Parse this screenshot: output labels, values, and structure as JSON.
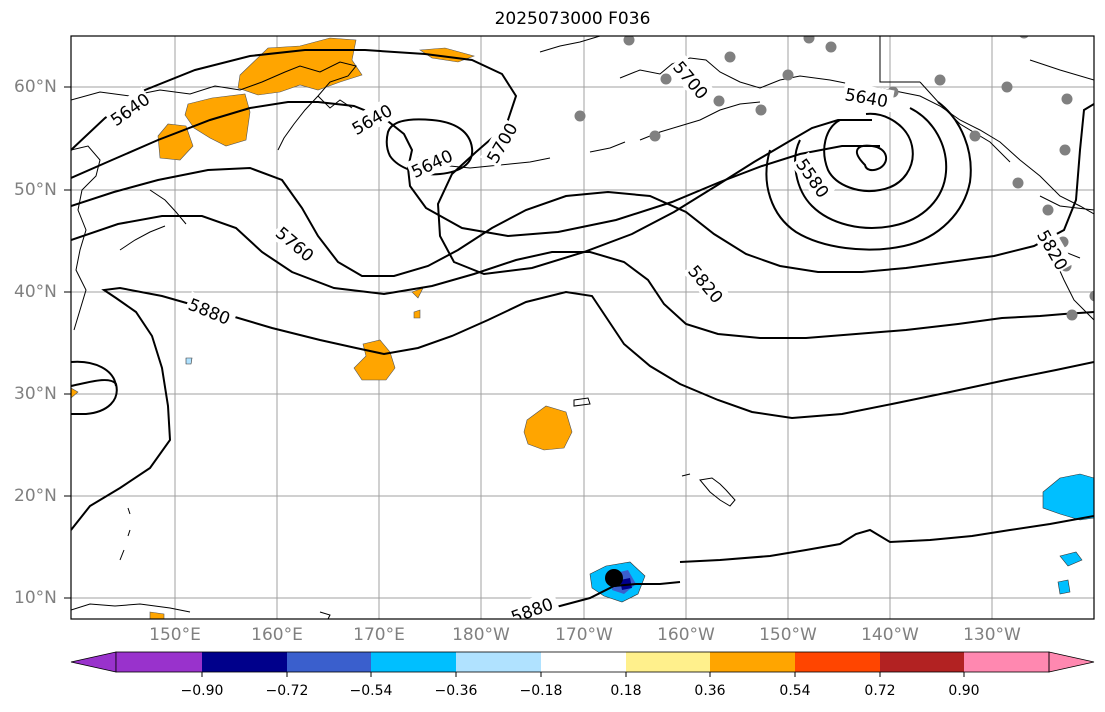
{
  "title": "2025073000 F036",
  "lat_labels": [
    "60°N",
    "50°N",
    "40°N",
    "30°N",
    "20°N",
    "10°N"
  ],
  "lon_labels": [
    "150°E",
    "160°E",
    "170°E",
    "180°W",
    "170°W",
    "160°W",
    "150°W",
    "140°W",
    "130°W"
  ],
  "contour_labels": [
    "5640",
    "5640",
    "5640",
    "5700",
    "5700",
    "5640",
    "5580",
    "5760",
    "5880",
    "5820",
    "5820",
    "5880"
  ],
  "colorbar": {
    "ticks": [
      "−0.90",
      "−0.72",
      "−0.54",
      "−0.36",
      "−0.18",
      "0.18",
      "0.36",
      "0.54",
      "0.72",
      "0.90"
    ],
    "colors": [
      "#9932cc",
      "#00008b",
      "#3a5fcd",
      "#00bfff",
      "#b0e2ff",
      "#ffffff",
      "#fff08c",
      "#ffa500",
      "#ff4500",
      "#b22222",
      "#ff88b0"
    ]
  }
}
